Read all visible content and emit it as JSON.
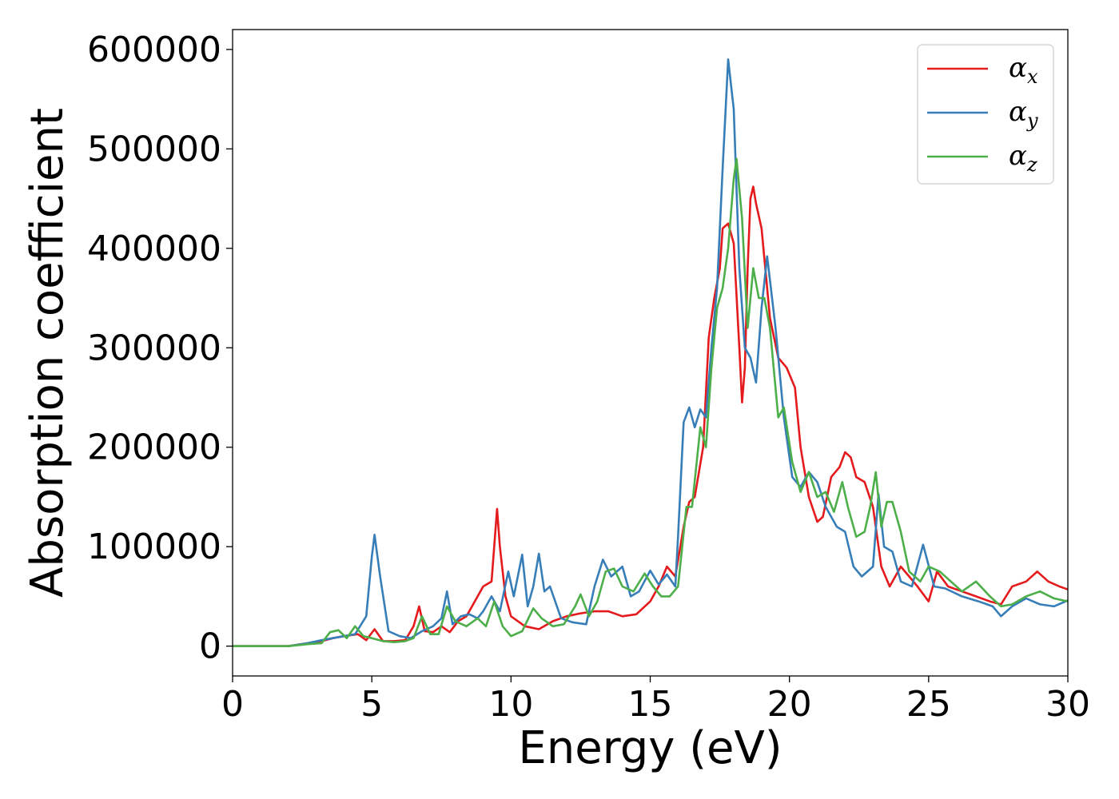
{
  "chart_data": {
    "type": "line",
    "title": "",
    "xlabel": "Energy (eV)",
    "ylabel": "Absorption coefficient",
    "xlim": [
      0,
      30
    ],
    "ylim": [
      -30000,
      620000
    ],
    "xticks": [
      0,
      5,
      10,
      15,
      20,
      25,
      30
    ],
    "xtick_labels": [
      "0",
      "5",
      "10",
      "15",
      "20",
      "25",
      "30"
    ],
    "yticks": [
      0,
      100000,
      200000,
      300000,
      400000,
      500000,
      600000
    ],
    "ytick_labels": [
      "0",
      "100000",
      "200000",
      "300000",
      "400000",
      "500000",
      "600000"
    ],
    "grid": false,
    "legend_position": "top-right",
    "series": [
      {
        "name": "α",
        "subscript": "x",
        "color": "#e41a1c",
        "x": [
          0,
          2,
          2.7,
          3.2,
          3.6,
          4.0,
          4.5,
          4.8,
          5.1,
          5.4,
          5.8,
          6.2,
          6.5,
          6.7,
          6.9,
          7.2,
          7.5,
          7.8,
          8.1,
          8.4,
          8.7,
          9.0,
          9.3,
          9.5,
          9.6,
          9.8,
          10.0,
          10.5,
          11.0,
          11.5,
          12.0,
          12.5,
          13.0,
          13.5,
          14.0,
          14.5,
          15.0,
          15.3,
          15.6,
          15.9,
          16.2,
          16.4,
          16.6,
          16.9,
          17.1,
          17.3,
          17.5,
          17.6,
          17.8,
          18.0,
          18.2,
          18.3,
          18.4,
          18.5,
          18.6,
          18.7,
          18.8,
          19.0,
          19.3,
          19.6,
          19.9,
          20.2,
          20.4,
          20.7,
          21.0,
          21.2,
          21.5,
          21.8,
          22.0,
          22.2,
          22.4,
          22.7,
          23.0,
          23.3,
          23.6,
          24.0,
          24.3,
          24.6,
          25.0,
          25.3,
          25.7,
          26.2,
          26.7,
          27.2,
          27.6,
          28.0,
          28.5,
          28.9,
          29.3,
          29.7,
          30.0
        ],
        "y": [
          0,
          0,
          3000,
          5000,
          8000,
          10000,
          12000,
          6000,
          17000,
          5000,
          5000,
          6000,
          20000,
          40000,
          15000,
          14000,
          20000,
          14000,
          25000,
          30000,
          45000,
          60000,
          65000,
          138000,
          100000,
          50000,
          30000,
          20000,
          17000,
          25000,
          30000,
          33000,
          35000,
          35000,
          30000,
          32000,
          45000,
          60000,
          80000,
          70000,
          120000,
          145000,
          150000,
          200000,
          310000,
          350000,
          380000,
          420000,
          425000,
          405000,
          300000,
          245000,
          280000,
          380000,
          450000,
          462000,
          445000,
          420000,
          330000,
          290000,
          280000,
          260000,
          200000,
          150000,
          125000,
          130000,
          170000,
          180000,
          195000,
          190000,
          170000,
          165000,
          140000,
          80000,
          60000,
          80000,
          70000,
          60000,
          45000,
          75000,
          60000,
          55000,
          50000,
          45000,
          42000,
          60000,
          65000,
          75000,
          65000,
          60000,
          57000
        ]
      },
      {
        "name": "α",
        "subscript": "y",
        "color": "#377eb8",
        "x": [
          0,
          2,
          2.7,
          3.2,
          3.6,
          4.0,
          4.4,
          4.8,
          5.0,
          5.1,
          5.3,
          5.6,
          6.0,
          6.4,
          6.8,
          7.2,
          7.5,
          7.7,
          7.9,
          8.2,
          8.5,
          8.8,
          9.0,
          9.3,
          9.6,
          9.9,
          10.1,
          10.4,
          10.6,
          10.8,
          11.0,
          11.2,
          11.4,
          11.8,
          12.2,
          12.7,
          13.0,
          13.3,
          13.6,
          14.0,
          14.3,
          14.6,
          15.0,
          15.3,
          15.6,
          15.9,
          16.0,
          16.2,
          16.4,
          16.6,
          16.8,
          17.0,
          17.2,
          17.4,
          17.6,
          17.8,
          18.0,
          18.2,
          18.4,
          18.6,
          18.8,
          19.0,
          19.2,
          19.5,
          19.8,
          20.1,
          20.4,
          20.7,
          21.0,
          21.3,
          21.7,
          22.0,
          22.3,
          22.6,
          23.0,
          23.2,
          23.4,
          23.7,
          24.0,
          24.4,
          24.8,
          25.2,
          25.6,
          26.2,
          26.8,
          27.3,
          27.6,
          28.0,
          28.5,
          29.0,
          29.5,
          30.0
        ],
        "y": [
          0,
          0,
          3000,
          6000,
          8000,
          10000,
          12000,
          30000,
          90000,
          112000,
          70000,
          15000,
          10000,
          8000,
          15000,
          20000,
          28000,
          55000,
          22000,
          30000,
          32000,
          28000,
          35000,
          50000,
          35000,
          75000,
          50000,
          92000,
          40000,
          60000,
          93000,
          55000,
          60000,
          28000,
          24000,
          22000,
          60000,
          87000,
          70000,
          80000,
          50000,
          55000,
          76000,
          62000,
          72000,
          60000,
          110000,
          225000,
          240000,
          220000,
          238000,
          230000,
          300000,
          360000,
          480000,
          590000,
          540000,
          380000,
          300000,
          290000,
          265000,
          340000,
          392000,
          320000,
          230000,
          170000,
          160000,
          175000,
          165000,
          140000,
          120000,
          115000,
          80000,
          70000,
          80000,
          153000,
          100000,
          95000,
          65000,
          60000,
          102000,
          60000,
          58000,
          50000,
          45000,
          40000,
          30000,
          40000,
          48000,
          42000,
          40000,
          46000
        ]
      },
      {
        "name": "α",
        "subscript": "z",
        "color": "#4daf4a",
        "x": [
          0,
          2,
          2.7,
          3.2,
          3.5,
          3.8,
          4.1,
          4.4,
          4.7,
          5.0,
          5.4,
          5.8,
          6.2,
          6.5,
          6.8,
          7.1,
          7.4,
          7.7,
          8.0,
          8.4,
          8.8,
          9.1,
          9.4,
          9.7,
          10.0,
          10.4,
          10.8,
          11.1,
          11.5,
          11.9,
          12.3,
          12.5,
          12.8,
          13.1,
          13.4,
          13.7,
          14.0,
          14.4,
          14.8,
          15.1,
          15.4,
          15.7,
          16.0,
          16.3,
          16.5,
          16.8,
          17.0,
          17.2,
          17.4,
          17.6,
          17.8,
          18.0,
          18.1,
          18.3,
          18.5,
          18.7,
          18.9,
          19.1,
          19.3,
          19.6,
          19.8,
          20.1,
          20.4,
          20.7,
          21.0,
          21.3,
          21.6,
          21.9,
          22.1,
          22.4,
          22.7,
          22.9,
          23.1,
          23.3,
          23.5,
          23.7,
          24.0,
          24.3,
          24.7,
          25.0,
          25.4,
          25.8,
          26.2,
          26.7,
          27.2,
          27.6,
          28.0,
          28.5,
          29.0,
          29.5,
          30.0
        ],
        "y": [
          0,
          0,
          2000,
          3000,
          14000,
          16000,
          8000,
          20000,
          10000,
          8000,
          5000,
          4000,
          5000,
          8000,
          30000,
          12000,
          12000,
          40000,
          25000,
          20000,
          28000,
          20000,
          45000,
          20000,
          10000,
          15000,
          38000,
          28000,
          20000,
          22000,
          40000,
          52000,
          30000,
          45000,
          75000,
          78000,
          60000,
          55000,
          73000,
          60000,
          50000,
          50000,
          60000,
          140000,
          140000,
          220000,
          200000,
          280000,
          340000,
          360000,
          400000,
          470000,
          490000,
          430000,
          320000,
          380000,
          350000,
          350000,
          320000,
          230000,
          240000,
          185000,
          155000,
          175000,
          150000,
          155000,
          135000,
          165000,
          140000,
          110000,
          115000,
          140000,
          175000,
          120000,
          145000,
          145000,
          115000,
          75000,
          65000,
          80000,
          75000,
          65000,
          55000,
          65000,
          50000,
          40000,
          42000,
          50000,
          55000,
          48000,
          45000
        ]
      }
    ]
  }
}
